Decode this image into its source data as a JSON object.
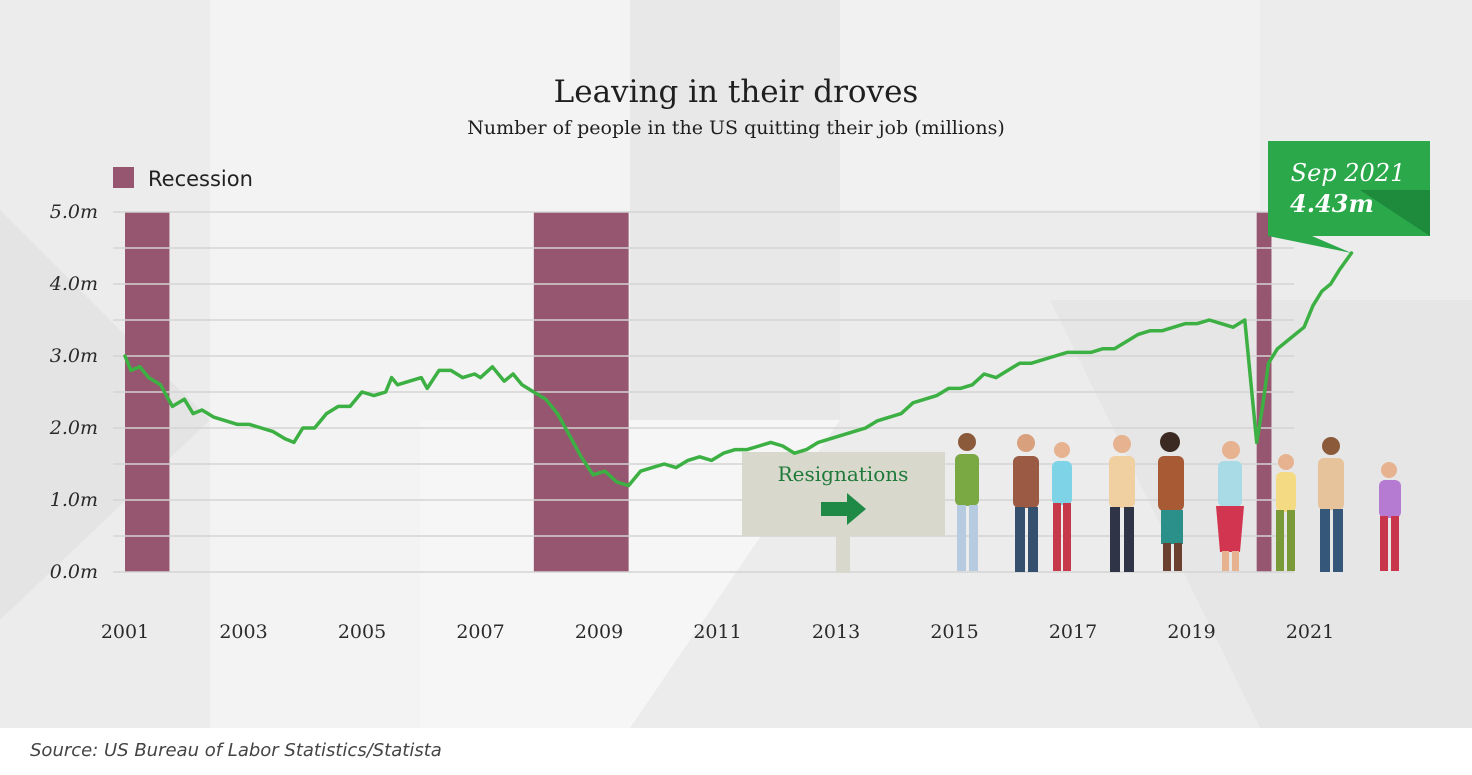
{
  "chart_data": {
    "type": "line",
    "title": "Leaving in their droves",
    "subtitle": "Number of people in the US quitting their job (millions)",
    "source": "Source: US Bureau of Labor Statistics/Statista",
    "legend": {
      "label": "Recession",
      "placement": "top-left"
    },
    "ylim": [
      0,
      5
    ],
    "xlim": [
      2001.0,
      2022.0
    ],
    "yticks": [
      {
        "value": 0,
        "label": "0.0m"
      },
      {
        "value": 1,
        "label": "1.0m"
      },
      {
        "value": 2,
        "label": "2.0m"
      },
      {
        "value": 3,
        "label": "3.0m"
      },
      {
        "value": 4,
        "label": "4.0m"
      },
      {
        "value": 5,
        "label": "5.0m"
      }
    ],
    "xticks": [
      {
        "value": 2001,
        "label": "2001"
      },
      {
        "value": 2003,
        "label": "2003"
      },
      {
        "value": 2005,
        "label": "2005"
      },
      {
        "value": 2007,
        "label": "2007"
      },
      {
        "value": 2009,
        "label": "2009"
      },
      {
        "value": 2011,
        "label": "2011"
      },
      {
        "value": 2013,
        "label": "2013"
      },
      {
        "value": 2015,
        "label": "2015"
      },
      {
        "value": 2017,
        "label": "2017"
      },
      {
        "value": 2019,
        "label": "2019"
      },
      {
        "value": 2021,
        "label": "2021"
      }
    ],
    "grid": true,
    "recessions": [
      {
        "start": 2001.0,
        "end": 2001.75
      },
      {
        "start": 2007.9,
        "end": 2009.5
      },
      {
        "start": 2020.1,
        "end": 2020.35
      }
    ],
    "series": [
      {
        "color": "#3cb043",
        "x": [
          2001.0,
          2001.1,
          2001.25,
          2001.4,
          2001.6,
          2001.8,
          2002.0,
          2002.15,
          2002.3,
          2002.5,
          2002.7,
          2002.9,
          2003.1,
          2003.3,
          2003.5,
          2003.7,
          2003.85,
          2004.0,
          2004.2,
          2004.4,
          2004.6,
          2004.8,
          2005.0,
          2005.2,
          2005.4,
          2005.5,
          2005.6,
          2005.8,
          2006.0,
          2006.1,
          2006.3,
          2006.5,
          2006.7,
          2006.9,
          2007.0,
          2007.2,
          2007.4,
          2007.55,
          2007.7,
          2007.9,
          2008.1,
          2008.3,
          2008.5,
          2008.7,
          2008.9,
          2009.1,
          2009.3,
          2009.5,
          2009.7,
          2009.9,
          2010.1,
          2010.3,
          2010.5,
          2010.7,
          2010.9,
          2011.1,
          2011.3,
          2011.5,
          2011.7,
          2011.9,
          2012.1,
          2012.3,
          2012.5,
          2012.7,
          2012.9,
          2013.1,
          2013.3,
          2013.5,
          2013.7,
          2013.9,
          2014.1,
          2014.3,
          2014.5,
          2014.7,
          2014.9,
          2015.1,
          2015.3,
          2015.5,
          2015.7,
          2015.9,
          2016.1,
          2016.3,
          2016.5,
          2016.7,
          2016.9,
          2017.1,
          2017.3,
          2017.5,
          2017.7,
          2017.9,
          2018.1,
          2018.3,
          2018.5,
          2018.7,
          2018.9,
          2019.1,
          2019.3,
          2019.5,
          2019.7,
          2019.9,
          2020.1,
          2020.2,
          2020.3,
          2020.45,
          2020.6,
          2020.75,
          2020.9,
          2021.05,
          2021.2,
          2021.35,
          2021.5,
          2021.7
        ],
        "values": [
          3.0,
          2.8,
          2.85,
          2.7,
          2.6,
          2.3,
          2.4,
          2.2,
          2.25,
          2.15,
          2.1,
          2.05,
          2.05,
          2.0,
          1.95,
          1.85,
          1.8,
          2.0,
          2.0,
          2.2,
          2.3,
          2.3,
          2.5,
          2.45,
          2.5,
          2.7,
          2.6,
          2.65,
          2.7,
          2.55,
          2.8,
          2.8,
          2.7,
          2.75,
          2.7,
          2.85,
          2.65,
          2.75,
          2.6,
          2.5,
          2.4,
          2.2,
          1.9,
          1.6,
          1.35,
          1.4,
          1.25,
          1.2,
          1.4,
          1.45,
          1.5,
          1.45,
          1.55,
          1.6,
          1.55,
          1.65,
          1.7,
          1.7,
          1.75,
          1.8,
          1.75,
          1.65,
          1.7,
          1.8,
          1.85,
          1.9,
          1.95,
          2.0,
          2.1,
          2.15,
          2.2,
          2.35,
          2.4,
          2.45,
          2.55,
          2.55,
          2.6,
          2.75,
          2.7,
          2.8,
          2.9,
          2.9,
          2.95,
          3.0,
          3.05,
          3.05,
          3.05,
          3.1,
          3.1,
          3.2,
          3.3,
          3.35,
          3.35,
          3.4,
          3.45,
          3.45,
          3.5,
          3.45,
          3.4,
          3.5,
          1.8,
          2.3,
          2.9,
          3.1,
          3.2,
          3.3,
          3.4,
          3.7,
          3.9,
          4.0,
          4.2,
          4.43
        ]
      }
    ],
    "callout": {
      "x": 2021.7,
      "y": 4.43,
      "line1": "Sep 2021",
      "line2": "4.43m",
      "color": "#2aa84a"
    },
    "annotation": {
      "label": "Resignations",
      "arrow": "right-arrow-icon",
      "arrow_color": "#1f8a45"
    },
    "colors": {
      "line": "#3cb043",
      "recession": "#96566f",
      "grid": "#d4d4d4",
      "background": "#ededed"
    }
  }
}
